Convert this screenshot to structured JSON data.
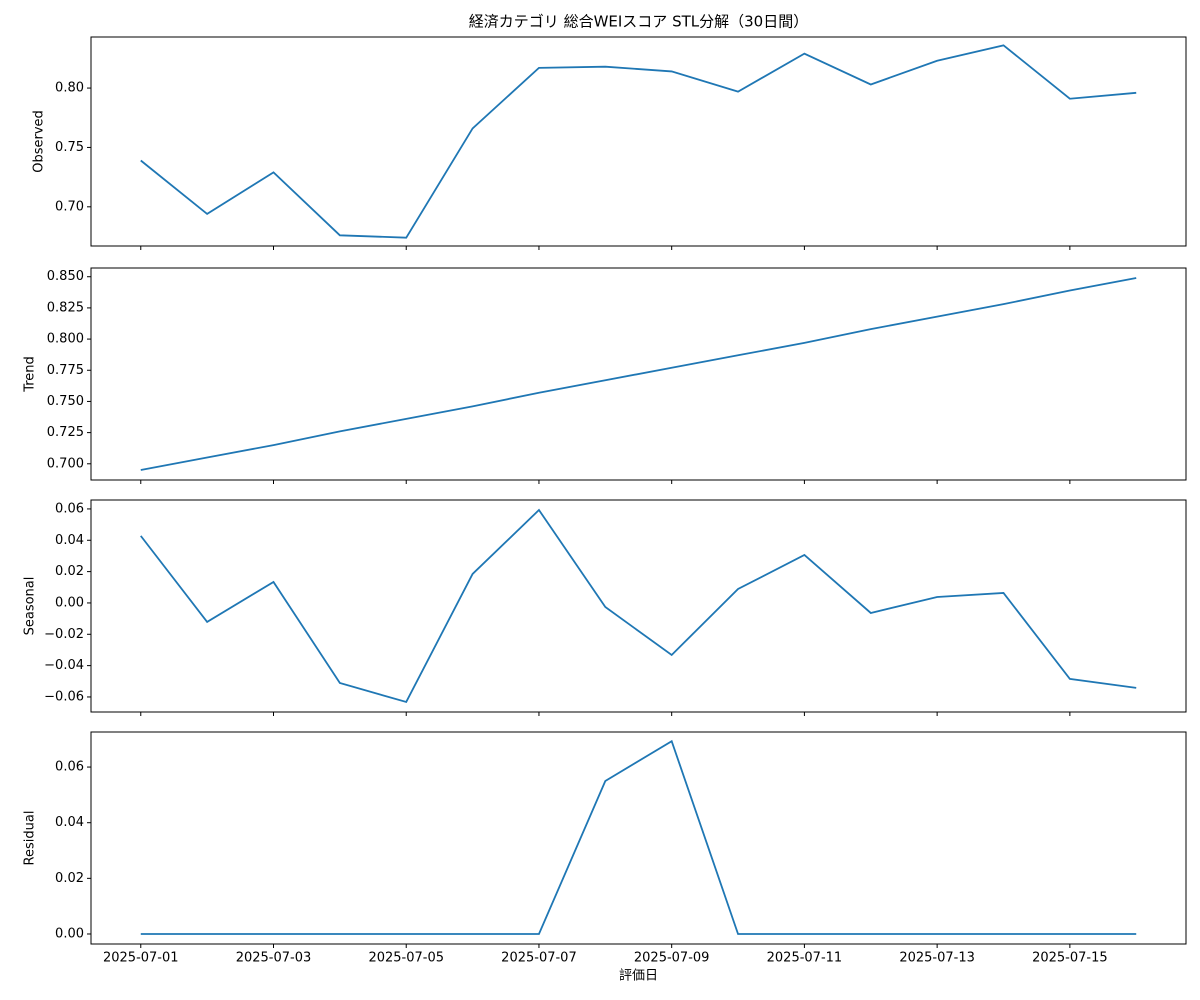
{
  "chart_data": [
    {
      "type": "line",
      "title": "経済カテゴリ 総合WEIスコア STL分解（30日間）",
      "ylabel": "Observed",
      "color": "#1f77b4",
      "x": [
        "2025-07-01",
        "2025-07-02",
        "2025-07-03",
        "2025-07-04",
        "2025-07-05",
        "2025-07-06",
        "2025-07-07",
        "2025-07-08",
        "2025-07-09",
        "2025-07-10",
        "2025-07-11",
        "2025-07-12",
        "2025-07-13",
        "2025-07-14",
        "2025-07-15",
        "2025-07-16"
      ],
      "values": [
        0.739,
        0.694,
        0.729,
        0.676,
        0.674,
        0.766,
        0.817,
        0.818,
        0.814,
        0.797,
        0.829,
        0.803,
        0.823,
        0.836,
        0.791,
        0.796
      ],
      "ylim": [
        0.667,
        0.843
      ],
      "yticks": [
        {
          "value": 0.7,
          "label": "0.70"
        },
        {
          "value": 0.75,
          "label": "0.75"
        },
        {
          "value": 0.8,
          "label": "0.80"
        }
      ]
    },
    {
      "type": "line",
      "ylabel": "Trend",
      "color": "#1f77b4",
      "x": [
        "2025-07-01",
        "2025-07-02",
        "2025-07-03",
        "2025-07-04",
        "2025-07-05",
        "2025-07-06",
        "2025-07-07",
        "2025-07-08",
        "2025-07-09",
        "2025-07-10",
        "2025-07-11",
        "2025-07-12",
        "2025-07-13",
        "2025-07-14",
        "2025-07-15",
        "2025-07-16"
      ],
      "values": [
        0.695,
        0.705,
        0.715,
        0.726,
        0.736,
        0.746,
        0.757,
        0.767,
        0.777,
        0.787,
        0.797,
        0.808,
        0.818,
        0.828,
        0.839,
        0.849
      ],
      "ylim": [
        0.687,
        0.857
      ],
      "yticks": [
        {
          "value": 0.7,
          "label": "0.700"
        },
        {
          "value": 0.725,
          "label": "0.725"
        },
        {
          "value": 0.75,
          "label": "0.750"
        },
        {
          "value": 0.775,
          "label": "0.775"
        },
        {
          "value": 0.8,
          "label": "0.800"
        },
        {
          "value": 0.825,
          "label": "0.825"
        },
        {
          "value": 0.85,
          "label": "0.850"
        }
      ]
    },
    {
      "type": "line",
      "ylabel": "Seasonal",
      "color": "#1f77b4",
      "x": [
        "2025-07-01",
        "2025-07-02",
        "2025-07-03",
        "2025-07-04",
        "2025-07-05",
        "2025-07-06",
        "2025-07-07",
        "2025-07-08",
        "2025-07-09",
        "2025-07-10",
        "2025-07-11",
        "2025-07-12",
        "2025-07-13",
        "2025-07-14",
        "2025-07-15",
        "2025-07-16"
      ],
      "values": [
        0.0428,
        -0.0121,
        0.0134,
        -0.0511,
        -0.0632,
        0.0185,
        0.0593,
        -0.0026,
        -0.0332,
        0.0089,
        0.0306,
        -0.0064,
        0.0038,
        0.0064,
        -0.0485,
        -0.0542
      ],
      "ylim": [
        -0.0696,
        0.0657
      ],
      "yticks": [
        {
          "value": -0.06,
          "label": "−0.06"
        },
        {
          "value": -0.04,
          "label": "−0.04"
        },
        {
          "value": -0.02,
          "label": "−0.02"
        },
        {
          "value": 0,
          "label": "0.00"
        },
        {
          "value": 0.02,
          "label": "0.02"
        },
        {
          "value": 0.04,
          "label": "0.04"
        },
        {
          "value": 0.06,
          "label": "0.06"
        }
      ]
    },
    {
      "type": "line",
      "ylabel": "Residual",
      "xlabel": "評価日",
      "color": "#1f77b4",
      "x": [
        "2025-07-01",
        "2025-07-02",
        "2025-07-03",
        "2025-07-04",
        "2025-07-05",
        "2025-07-06",
        "2025-07-07",
        "2025-07-08",
        "2025-07-09",
        "2025-07-10",
        "2025-07-11",
        "2025-07-12",
        "2025-07-13",
        "2025-07-14",
        "2025-07-15",
        "2025-07-16"
      ],
      "values": [
        0,
        0,
        0,
        0,
        0,
        0,
        0,
        0.055,
        0.0693,
        0,
        0,
        0,
        0,
        0,
        0,
        0
      ],
      "ylim": [
        -0.0036,
        0.0726
      ],
      "yticks": [
        {
          "value": 0,
          "label": "0.00"
        },
        {
          "value": 0.02,
          "label": "0.02"
        },
        {
          "value": 0.04,
          "label": "0.04"
        },
        {
          "value": 0.06,
          "label": "0.06"
        }
      ],
      "xticks": [
        "2025-07-01",
        "2025-07-03",
        "2025-07-05",
        "2025-07-07",
        "2025-07-09",
        "2025-07-11",
        "2025-07-13",
        "2025-07-15"
      ]
    }
  ]
}
